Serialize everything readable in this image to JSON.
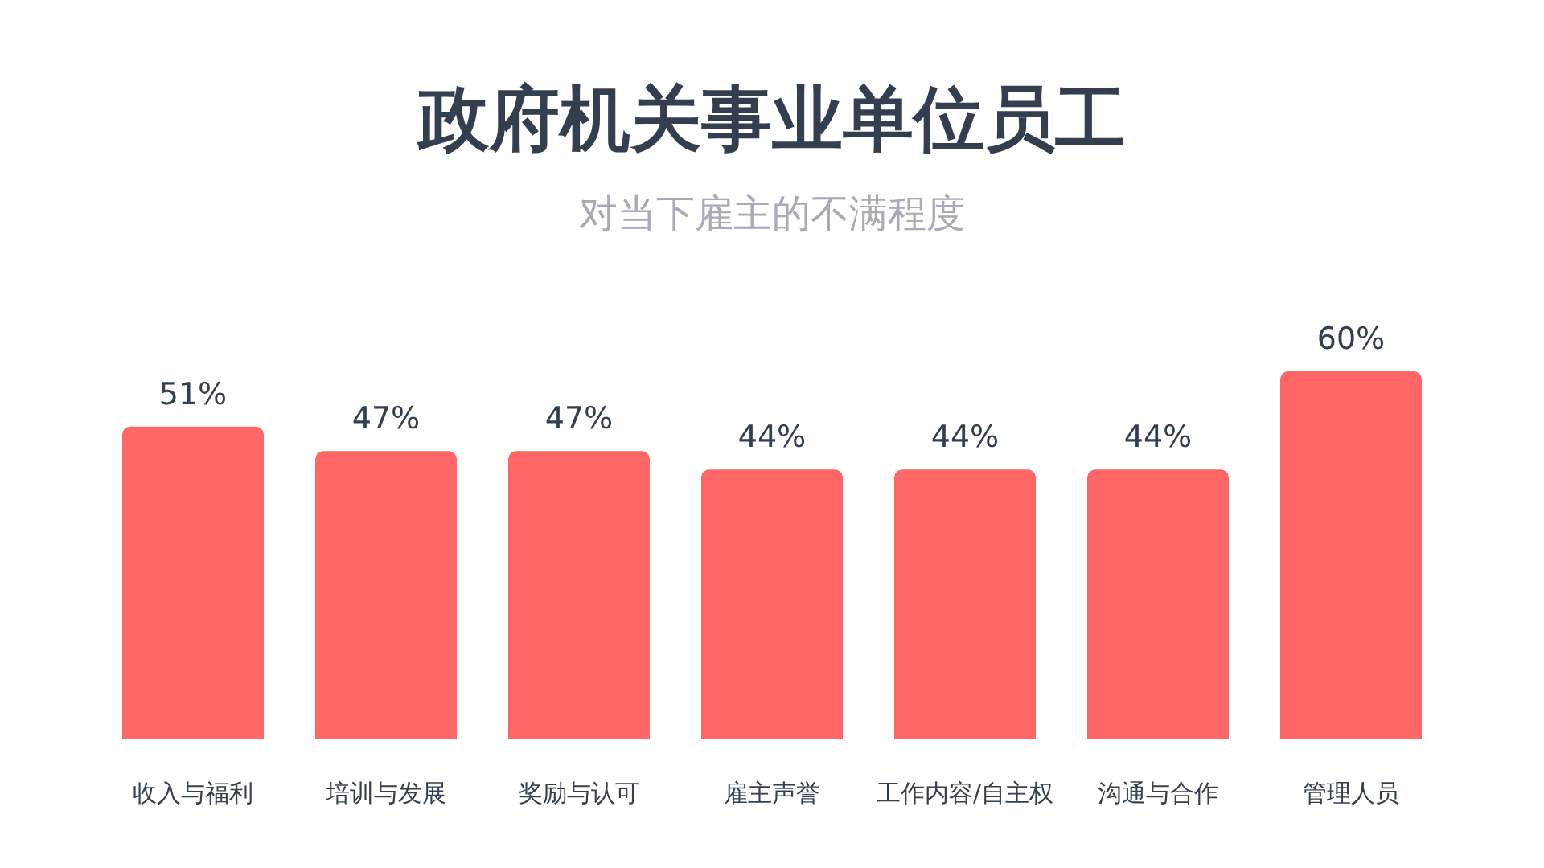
{
  "chart_data": {
    "type": "bar",
    "title": "政府机关事业单位员工",
    "subtitle": "对当下雇主的不满程度",
    "categories": [
      "收入与福利",
      "培训与发展",
      "奖励与认可",
      "雇主声誉",
      "工作内容/自主权",
      "沟通与合作",
      "管理人员"
    ],
    "values": [
      51,
      47,
      47,
      44,
      44,
      44,
      60
    ],
    "value_labels": [
      "51%",
      "47%",
      "47%",
      "44%",
      "44%",
      "44%",
      "60%"
    ],
    "color": "#ff6666"
  }
}
